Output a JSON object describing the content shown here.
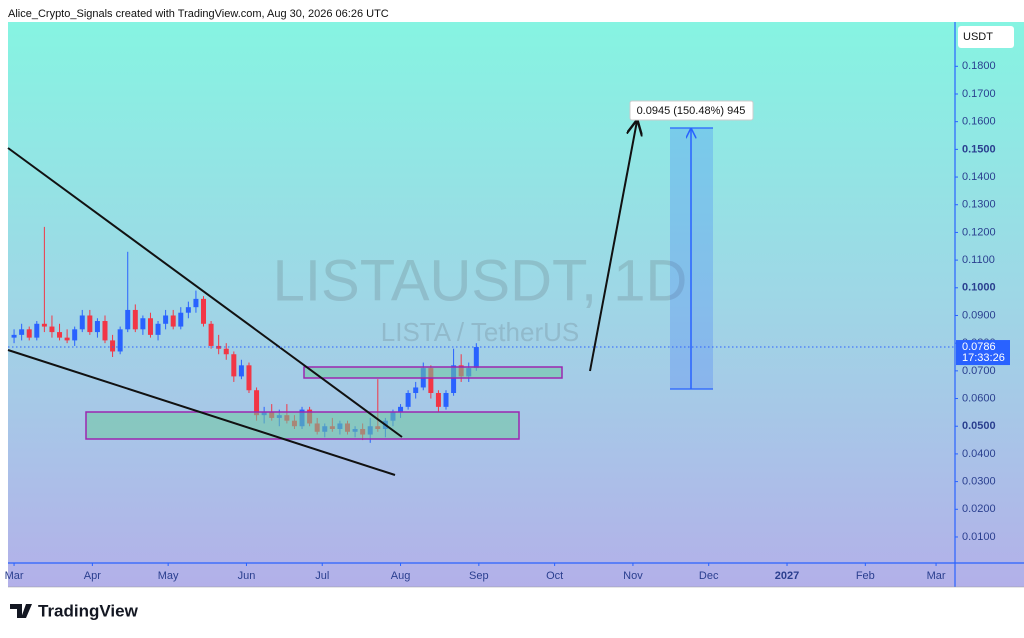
{
  "header": "Alice_Crypto_Signals created with TradingView.com, Aug 30, 2026 06:26 UTC",
  "logo": "TradingView",
  "chart_data": {
    "type": "candlestick",
    "watermark_title": "LISTAUSDT, 1D",
    "watermark_subtitle": "LISTA / TetherUS",
    "currency": "USDT",
    "annotation": "0.0945 (150.48%) 945",
    "last_price": 0.0786,
    "countdown": "17:33:26",
    "up_color": "#2962ff",
    "down_color": "#f23645",
    "x": [
      0,
      3,
      6,
      9,
      12,
      15,
      18,
      21,
      24,
      27,
      30,
      33,
      36,
      39,
      42,
      45,
      48,
      51,
      54,
      57,
      60,
      63,
      66,
      69,
      72,
      75,
      78,
      81,
      84,
      87,
      90,
      93,
      96,
      99,
      102,
      105,
      108,
      111,
      114,
      117,
      120,
      123,
      126,
      129,
      132,
      135,
      138,
      141,
      144,
      147,
      150,
      153,
      156,
      159,
      162,
      165,
      168,
      171,
      174,
      177,
      180,
      183
    ],
    "open": [
      0.082,
      0.083,
      0.085,
      0.082,
      0.087,
      0.086,
      0.084,
      0.082,
      0.081,
      0.085,
      0.09,
      0.084,
      0.088,
      0.081,
      0.077,
      0.085,
      0.092,
      0.085,
      0.089,
      0.083,
      0.087,
      0.09,
      0.086,
      0.091,
      0.093,
      0.096,
      0.087,
      0.079,
      0.078,
      0.076,
      0.068,
      0.072,
      0.063,
      0.054,
      0.055,
      0.053,
      0.054,
      0.052,
      0.05,
      0.056,
      0.051,
      0.048,
      0.05,
      0.049,
      0.051,
      0.048,
      0.049,
      0.047,
      0.05,
      0.049,
      0.052,
      0.055,
      0.057,
      0.062,
      0.064,
      0.071,
      0.062,
      0.057,
      0.062,
      0.072,
      0.068,
      0.071
    ],
    "high": [
      0.085,
      0.087,
      0.086,
      0.088,
      0.122,
      0.09,
      0.087,
      0.085,
      0.086,
      0.092,
      0.092,
      0.089,
      0.09,
      0.083,
      0.086,
      0.113,
      0.094,
      0.09,
      0.091,
      0.088,
      0.092,
      0.092,
      0.093,
      0.095,
      0.099,
      0.097,
      0.088,
      0.083,
      0.08,
      0.077,
      0.074,
      0.073,
      0.064,
      0.057,
      0.058,
      0.056,
      0.058,
      0.054,
      0.057,
      0.057,
      0.053,
      0.051,
      0.053,
      0.052,
      0.052,
      0.05,
      0.051,
      0.053,
      0.067,
      0.053,
      0.056,
      0.058,
      0.063,
      0.066,
      0.073,
      0.072,
      0.063,
      0.063,
      0.078,
      0.076,
      0.073,
      0.08
    ],
    "low": [
      0.08,
      0.081,
      0.081,
      0.081,
      0.084,
      0.082,
      0.081,
      0.08,
      0.079,
      0.084,
      0.083,
      0.082,
      0.08,
      0.075,
      0.076,
      0.084,
      0.084,
      0.083,
      0.082,
      0.081,
      0.085,
      0.085,
      0.085,
      0.089,
      0.091,
      0.086,
      0.078,
      0.076,
      0.074,
      0.066,
      0.067,
      0.062,
      0.052,
      0.051,
      0.052,
      0.05,
      0.051,
      0.049,
      0.049,
      0.05,
      0.047,
      0.046,
      0.048,
      0.047,
      0.047,
      0.046,
      0.045,
      0.044,
      0.048,
      0.046,
      0.05,
      0.053,
      0.056,
      0.06,
      0.063,
      0.06,
      0.055,
      0.056,
      0.061,
      0.066,
      0.066,
      0.07
    ],
    "close": [
      0.083,
      0.085,
      0.082,
      0.087,
      0.086,
      0.084,
      0.082,
      0.081,
      0.085,
      0.09,
      0.084,
      0.088,
      0.081,
      0.077,
      0.085,
      0.092,
      0.085,
      0.089,
      0.083,
      0.087,
      0.09,
      0.086,
      0.091,
      0.093,
      0.096,
      0.087,
      0.079,
      0.078,
      0.076,
      0.068,
      0.072,
      0.063,
      0.054,
      0.055,
      0.053,
      0.054,
      0.052,
      0.05,
      0.056,
      0.051,
      0.048,
      0.05,
      0.049,
      0.051,
      0.048,
      0.049,
      0.047,
      0.05,
      0.049,
      0.052,
      0.055,
      0.057,
      0.062,
      0.064,
      0.071,
      0.062,
      0.057,
      0.062,
      0.072,
      0.068,
      0.071,
      0.0786
    ],
    "xlim": [
      -2.4,
      372.5
    ],
    "xticks": [
      {
        "value": 0,
        "label": "Mar"
      },
      {
        "value": 31,
        "label": "Apr"
      },
      {
        "value": 61,
        "label": "May"
      },
      {
        "value": 92,
        "label": "Jun"
      },
      {
        "value": 122,
        "label": "Jul"
      },
      {
        "value": 153,
        "label": "Aug"
      },
      {
        "value": 184,
        "label": "Sep"
      },
      {
        "value": 214,
        "label": "Oct"
      },
      {
        "value": 245,
        "label": "Nov"
      },
      {
        "value": 275,
        "label": "Dec"
      },
      {
        "value": 306,
        "label": "2027"
      },
      {
        "value": 337,
        "label": "Feb"
      },
      {
        "value": 365,
        "label": "Mar"
      }
    ],
    "ylim": [
      0.0006,
      0.196
    ],
    "yticks": [
      {
        "value": 0.01,
        "label": "0.0100"
      },
      {
        "value": 0.02,
        "label": "0.0200"
      },
      {
        "value": 0.03,
        "label": "0.0300"
      },
      {
        "value": 0.04,
        "label": "0.0400"
      },
      {
        "value": 0.05,
        "label": "0.0500"
      },
      {
        "value": 0.06,
        "label": "0.0600"
      },
      {
        "value": 0.07,
        "label": "0.0700"
      },
      {
        "value": 0.08,
        "label": "0.0800"
      },
      {
        "value": 0.09,
        "label": "0.0900"
      },
      {
        "value": 0.1,
        "label": "0.1000"
      },
      {
        "value": 0.11,
        "label": "0.1100"
      },
      {
        "value": 0.12,
        "label": "0.1200"
      },
      {
        "value": 0.13,
        "label": "0.1300"
      },
      {
        "value": 0.14,
        "label": "0.1400"
      },
      {
        "value": 0.15,
        "label": "0.1500"
      },
      {
        "value": 0.16,
        "label": "0.1600"
      },
      {
        "value": 0.17,
        "label": "0.1700"
      },
      {
        "value": 0.18,
        "label": "0.1800"
      }
    ]
  }
}
